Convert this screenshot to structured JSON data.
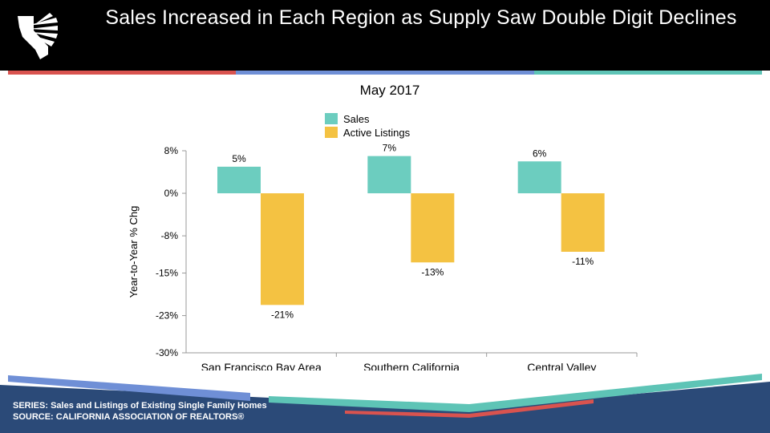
{
  "slide": {
    "title": "Sales Increased in Each Region as Supply Saw Double Digit Declines",
    "series_note": "SERIES: Sales and Listings of Existing Single Family Homes",
    "source_note": "SOURCE:  CALIFORNIA ASSOCIATION OF REALTORS®"
  },
  "colors": {
    "sales": "#6ccdbf",
    "listings": "#f4c242",
    "header_bg": "#000000",
    "stripe_red": "#d9534f",
    "stripe_blue": "#6f8fd6",
    "stripe_teal": "#5ec4b6",
    "footer_navy": "#2b4a78"
  },
  "icons": {
    "logo": "california-state-logo-icon"
  },
  "chart_data": {
    "type": "bar",
    "title": "May 2017",
    "ylabel": "Year-to-Year % Chg",
    "xlabel": "",
    "categories": [
      "San Francisco Bay Area",
      "Southern California",
      "Central Valley"
    ],
    "series": [
      {
        "name": "Sales",
        "values": [
          5,
          7,
          6
        ],
        "labels": [
          "5%",
          "7%",
          "6%"
        ]
      },
      {
        "name": "Active Listings",
        "values": [
          -21,
          -13,
          -11
        ],
        "labels": [
          "-21%",
          "-13%",
          "-11%"
        ]
      }
    ],
    "ylim": [
      -30,
      8
    ],
    "yticks": [
      8,
      0,
      -8,
      -15,
      -23,
      -30
    ],
    "ytick_labels": [
      "8%",
      "0%",
      "-8%",
      "-15%",
      "-23%",
      "-30%"
    ],
    "legend_position": "top-center",
    "grid": false
  }
}
